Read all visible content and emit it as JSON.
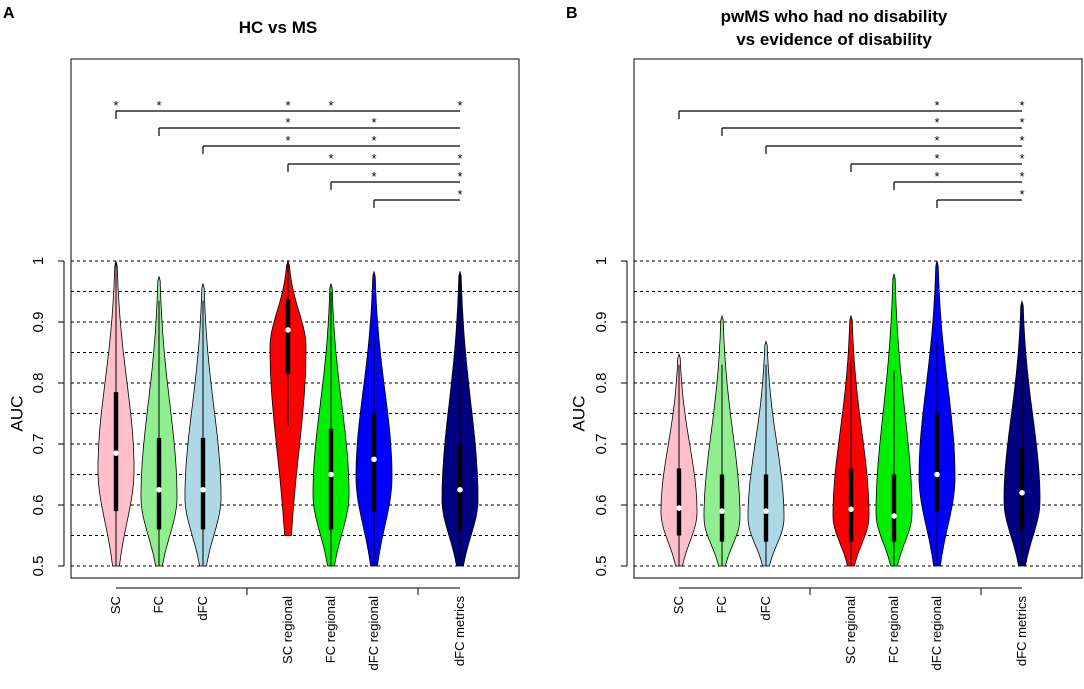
{
  "chart_data": [
    {
      "panel": "A",
      "type": "violin",
      "title": [
        "HC vs MS"
      ],
      "ylabel": "AUC",
      "ylim": [
        0.5,
        1.0
      ],
      "yticks": [
        "0.5",
        "0.6",
        "0.7",
        "0.8",
        "0.9",
        "1"
      ],
      "grid": "dashed horizontal every 0.05",
      "categories": [
        "SC",
        "FC",
        "dFC",
        "SC regional",
        "FC regional",
        "dFC regional",
        "dFC metrics"
      ],
      "colors": [
        "#ffc0cb",
        "#90ee90",
        "#add8e6",
        "#ff0000",
        "#00ee00",
        "#0000ff",
        "#000080"
      ],
      "series": [
        {
          "name": "SC",
          "min": 0.5,
          "max": 1.0,
          "q1": 0.59,
          "median": 0.685,
          "q3": 0.785,
          "wlo": 0.5,
          "whi": 1.0
        },
        {
          "name": "FC",
          "min": 0.5,
          "max": 0.975,
          "q1": 0.56,
          "median": 0.625,
          "q3": 0.71,
          "wlo": 0.5,
          "whi": 0.935
        },
        {
          "name": "dFC",
          "min": 0.5,
          "max": 0.963,
          "q1": 0.56,
          "median": 0.625,
          "q3": 0.71,
          "wlo": 0.5,
          "whi": 0.935
        },
        {
          "name": "SC regional",
          "min": 0.55,
          "max": 1.0,
          "q1": 0.815,
          "median": 0.887,
          "q3": 0.937,
          "wlo": 0.73,
          "whi": 1.0
        },
        {
          "name": "FC regional",
          "min": 0.5,
          "max": 0.963,
          "q1": 0.56,
          "median": 0.65,
          "q3": 0.725,
          "wlo": 0.5,
          "whi": 0.95
        },
        {
          "name": "dFC regional",
          "min": 0.5,
          "max": 0.983,
          "q1": 0.59,
          "median": 0.675,
          "q3": 0.75,
          "wlo": 0.5,
          "whi": 0.87
        },
        {
          "name": "dFC metrics",
          "min": 0.5,
          "max": 0.983,
          "q1": 0.56,
          "median": 0.625,
          "q3": 0.7,
          "wlo": 0.5,
          "whi": 0.983
        }
      ],
      "brackets": [
        {
          "from": 0,
          "stars_at": [
            1,
            2,
            4,
            5,
            7
          ]
        },
        {
          "from": 1,
          "stars_at": [
            4,
            6
          ]
        },
        {
          "from": 2,
          "stars_at": [
            4,
            6
          ]
        },
        {
          "from": 4,
          "stars_at": [
            5,
            6,
            7
          ]
        },
        {
          "from": 5,
          "stars_at": [
            6,
            7
          ]
        },
        {
          "from": 6,
          "stars_at": [
            7
          ]
        }
      ],
      "star_symbol": "*"
    },
    {
      "panel": "B",
      "type": "violin",
      "title": [
        "pwMS who had no disability",
        "vs evidence of disability"
      ],
      "ylabel": "AUC",
      "ylim": [
        0.5,
        1.0
      ],
      "yticks": [
        "0.5",
        "0.6",
        "0.7",
        "0.8",
        "0.9",
        "1"
      ],
      "grid": "dashed horizontal every 0.05",
      "categories": [
        "SC",
        "FC",
        "dFC",
        "SC regional",
        "FC regional",
        "dFC regional",
        "dFC metrics"
      ],
      "colors": [
        "#ffc0cb",
        "#90ee90",
        "#add8e6",
        "#ff0000",
        "#00ee00",
        "#0000ff",
        "#000080"
      ],
      "series": [
        {
          "name": "SC",
          "min": 0.5,
          "max": 0.847,
          "q1": 0.55,
          "median": 0.595,
          "q3": 0.66,
          "wlo": 0.5,
          "whi": 0.83
        },
        {
          "name": "FC",
          "min": 0.5,
          "max": 0.91,
          "q1": 0.54,
          "median": 0.59,
          "q3": 0.65,
          "wlo": 0.5,
          "whi": 0.83
        },
        {
          "name": "dFC",
          "min": 0.5,
          "max": 0.868,
          "q1": 0.54,
          "median": 0.59,
          "q3": 0.65,
          "wlo": 0.5,
          "whi": 0.83
        },
        {
          "name": "SC regional",
          "min": 0.5,
          "max": 0.91,
          "q1": 0.54,
          "median": 0.593,
          "q3": 0.66,
          "wlo": 0.5,
          "whi": 0.84
        },
        {
          "name": "FC regional",
          "min": 0.5,
          "max": 0.979,
          "q1": 0.54,
          "median": 0.582,
          "q3": 0.65,
          "wlo": 0.5,
          "whi": 0.82
        },
        {
          "name": "dFC regional",
          "min": 0.5,
          "max": 1.0,
          "q1": 0.59,
          "median": 0.65,
          "q3": 0.75,
          "wlo": 0.5,
          "whi": 0.87
        },
        {
          "name": "dFC metrics",
          "min": 0.5,
          "max": 0.934,
          "q1": 0.56,
          "median": 0.62,
          "q3": 0.695,
          "wlo": 0.5,
          "whi": 0.85
        }
      ],
      "brackets": [
        {
          "from": 0,
          "stars_at": [
            6,
            7
          ]
        },
        {
          "from": 1,
          "stars_at": [
            6,
            7
          ]
        },
        {
          "from": 2,
          "stars_at": [
            6,
            7
          ]
        },
        {
          "from": 4,
          "stars_at": [
            6,
            7
          ]
        },
        {
          "from": 5,
          "stars_at": [
            6,
            7
          ]
        },
        {
          "from": 6,
          "stars_at": [
            7
          ]
        }
      ],
      "star_symbol": "*"
    }
  ]
}
